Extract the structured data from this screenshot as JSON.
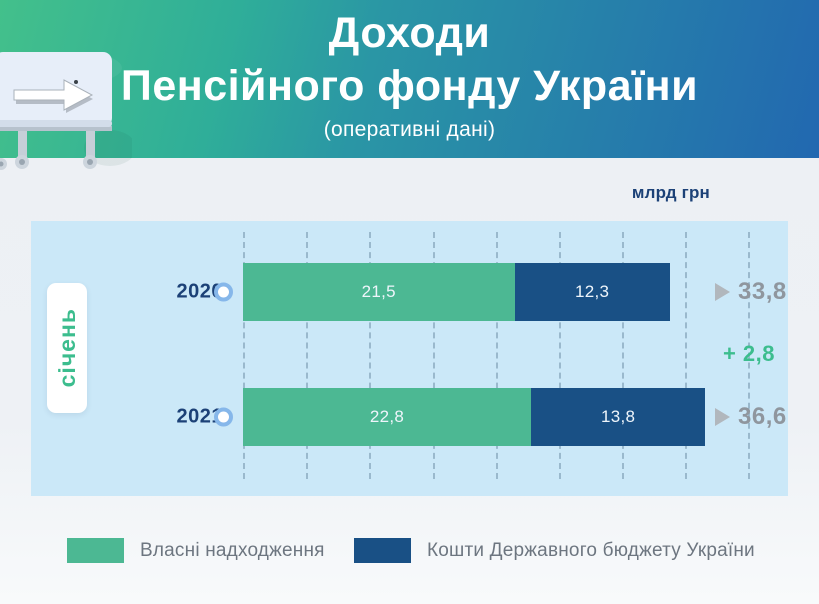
{
  "header": {
    "title_line1": "Доходи",
    "title_line2": "Пенсійного фонду України",
    "subtitle": "(оперативні дані)",
    "icon": "flipchart-arrow-right-icon",
    "gradient_colors": [
      "#43c08b",
      "#2fae99",
      "#2268b0"
    ]
  },
  "unit_label": "млрд грн",
  "month_tag": "січень",
  "rows": [
    {
      "year": "2020",
      "own": "21,5",
      "budget": "12,3",
      "total": "33,8"
    },
    {
      "year": "2021",
      "own": "22,8",
      "budget": "13,8",
      "total": "36,6"
    }
  ],
  "difference": "+ 2,8",
  "legend": [
    {
      "label": "Власні надходження",
      "color": "#4cb893"
    },
    {
      "label": "Кошти Державного бюджету України",
      "color": "#195085"
    }
  ],
  "colors": {
    "own_revenue": "#4cb893",
    "state_budget": "#195085",
    "panel_background": "#cbe8f8",
    "year_label": "#1c4177",
    "total_text": "#8f969e",
    "accent_green": "#3cbd8e",
    "legend_text": "#6d7680",
    "circle_marker_stroke": "#86b7ea"
  },
  "chart_data": {
    "type": "bar",
    "orientation": "horizontal-stacked",
    "title": "Доходи Пенсійного фонду України",
    "subtitle": "(оперативні дані)",
    "unit": "млрд грн",
    "period": "січень",
    "categories": [
      "2020",
      "2021"
    ],
    "series": [
      {
        "name": "Власні надходження",
        "values": [
          21.5,
          22.8
        ],
        "color": "#4cb893"
      },
      {
        "name": "Кошти Державного бюджету України",
        "values": [
          12.3,
          13.8
        ],
        "color": "#195085"
      }
    ],
    "totals": [
      33.8,
      36.6
    ],
    "total_difference": 2.8,
    "xlim": [
      0,
      40
    ],
    "grid_step": 5,
    "grid": "dashed-vertical",
    "legend_position": "bottom"
  }
}
